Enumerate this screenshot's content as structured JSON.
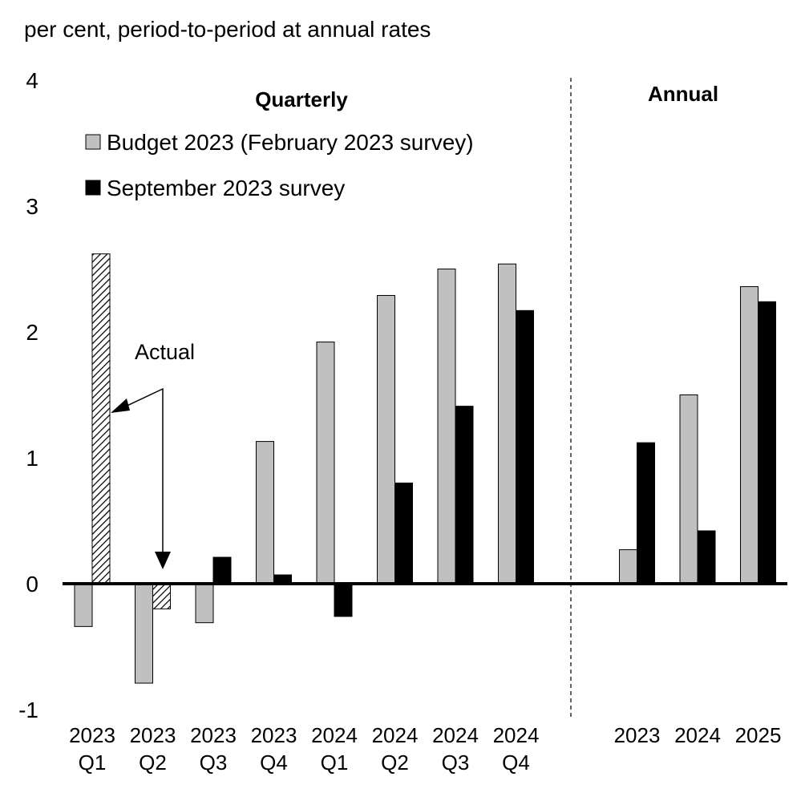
{
  "chart_data": {
    "type": "bar",
    "y_axis_label": "per cent, period-to-period at annual rates",
    "section_labels": [
      "Quarterly",
      "Annual"
    ],
    "annotation": "Actual",
    "categories": [
      "2023\nQ1",
      "2023\nQ2",
      "2023\nQ3",
      "2023\nQ4",
      "2024\nQ1",
      "2024\nQ2",
      "2024\nQ3",
      "2024\nQ4",
      null,
      "2023",
      "2024",
      "2025"
    ],
    "series": [
      {
        "name": "Budget 2023 (February 2023 survey)",
        "color": "#c0c0c0",
        "values": [
          -0.34,
          -0.79,
          -0.31,
          1.13,
          1.92,
          2.29,
          2.5,
          2.54,
          null,
          0.27,
          1.5,
          2.36
        ]
      },
      {
        "name": "September 2023 survey",
        "color": "#000000",
        "values": [
          2.62,
          -0.2,
          0.21,
          0.07,
          -0.26,
          0.8,
          1.41,
          2.17,
          null,
          1.12,
          0.42,
          2.24
        ],
        "hatched_points": [
          0,
          1
        ]
      }
    ],
    "ylim": [
      -1,
      4
    ],
    "yticks": [
      -1,
      0,
      1,
      2,
      3,
      4
    ],
    "grid": false
  }
}
